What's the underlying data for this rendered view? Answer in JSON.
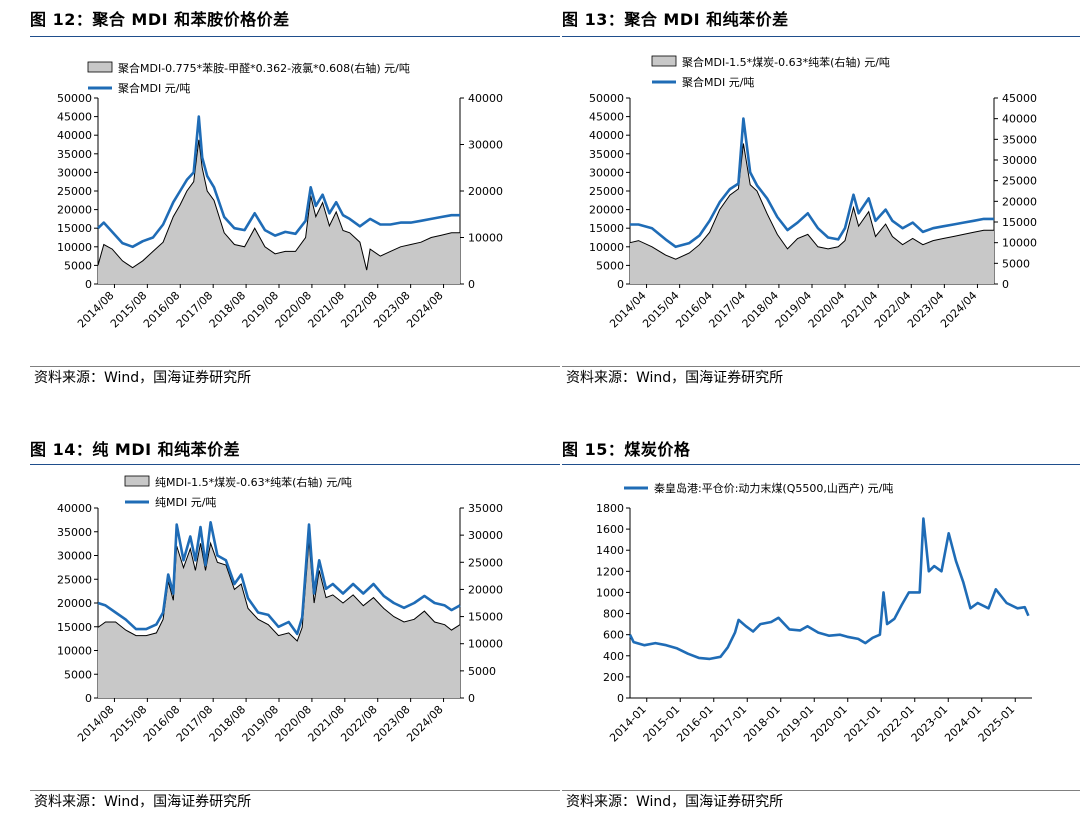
{
  "colors": {
    "line": "#1f6cb6",
    "area": "#c8c8c8",
    "spread": "#000000",
    "rule": "#1f4e8c"
  },
  "panels": [
    {
      "title": "图 12：聚合 MDI 和苯胺价格价差",
      "source": "资料来源：Wind，国海证券研究所"
    },
    {
      "title": "图 13：聚合 MDI 和纯苯价差",
      "source": "资料来源：Wind，国海证券研究所"
    },
    {
      "title": "图 14：纯 MDI 和纯苯价差",
      "source": "资料来源：Wind，国海证券研究所"
    },
    {
      "title": "图 15：煤炭价格",
      "source": "资料来源：Wind，国海证券研究所"
    }
  ],
  "chart_data": [
    {
      "type": "line",
      "title": "图 12：聚合 MDI 和苯胺价格价差",
      "legend": [
        "聚合MDI-0.775*苯胺-甲醛*0.362-液氯*0.608(右轴) 元/吨",
        "聚合MDI 元/吨"
      ],
      "x_ticks": [
        "2014/08",
        "2015/08",
        "2016/08",
        "2017/08",
        "2018/08",
        "2019/08",
        "2020/08",
        "2021/08",
        "2022/08",
        "2023/08",
        "2024/08"
      ],
      "x_range": [
        2014.58,
        2025.25
      ],
      "left_axis": {
        "min": 0,
        "max": 50000,
        "ticks": [
          0,
          5000,
          10000,
          15000,
          20000,
          25000,
          30000,
          35000,
          40000,
          45000,
          50000
        ]
      },
      "right_axis": {
        "min": 0,
        "max": 40000,
        "ticks": [
          0,
          10000,
          20000,
          30000,
          40000
        ]
      },
      "series": [
        {
          "name": "聚合MDI 元/吨",
          "axis": "left",
          "kind": "line",
          "x": [
            2014.58,
            2014.75,
            2015.0,
            2015.3,
            2015.6,
            2015.9,
            2016.2,
            2016.5,
            2016.8,
            2017.0,
            2017.2,
            2017.4,
            2017.55,
            2017.65,
            2017.8,
            2018.0,
            2018.3,
            2018.6,
            2018.9,
            2019.2,
            2019.5,
            2019.8,
            2020.1,
            2020.4,
            2020.7,
            2020.85,
            2021.0,
            2021.2,
            2021.4,
            2021.6,
            2021.8,
            2022.0,
            2022.3,
            2022.6,
            2022.9,
            2023.2,
            2023.5,
            2023.8,
            2024.1,
            2024.4,
            2024.7,
            2025.0,
            2025.25
          ],
          "y": [
            15000,
            16500,
            14000,
            11000,
            10000,
            11500,
            12500,
            16000,
            22000,
            25000,
            28000,
            30000,
            45000,
            34000,
            29000,
            26000,
            18000,
            15000,
            14500,
            19000,
            14500,
            13000,
            14000,
            13500,
            17000,
            26000,
            21000,
            24000,
            19000,
            22000,
            18500,
            17500,
            15500,
            17500,
            16000,
            16000,
            16500,
            16500,
            17000,
            17500,
            18000,
            18500,
            18500
          ]
        },
        {
          "name": "聚合MDI-0.775*苯胺-甲醛*0.362-液氯*0.608(右轴) 元/吨",
          "axis": "right",
          "kind": "area",
          "x": [
            2014.58,
            2014.75,
            2015.0,
            2015.3,
            2015.6,
            2015.9,
            2016.2,
            2016.5,
            2016.8,
            2017.0,
            2017.2,
            2017.4,
            2017.55,
            2017.65,
            2017.8,
            2018.0,
            2018.3,
            2018.6,
            2018.9,
            2019.2,
            2019.5,
            2019.8,
            2020.1,
            2020.4,
            2020.7,
            2020.85,
            2021.0,
            2021.2,
            2021.4,
            2021.6,
            2021.8,
            2022.0,
            2022.3,
            2022.5,
            2022.6,
            2022.9,
            2023.2,
            2023.5,
            2023.8,
            2024.1,
            2024.4,
            2024.7,
            2025.0,
            2025.25
          ],
          "y": [
            4000,
            8500,
            7500,
            5000,
            3500,
            5000,
            7000,
            9000,
            14500,
            17000,
            20000,
            22000,
            31000,
            25000,
            20000,
            18000,
            11000,
            8500,
            8000,
            12000,
            8000,
            6500,
            7000,
            7000,
            10000,
            19000,
            14500,
            17500,
            12500,
            15500,
            11500,
            11000,
            9000,
            3000,
            7500,
            6000,
            7000,
            8000,
            8500,
            9000,
            10000,
            10500,
            11000,
            11000
          ]
        }
      ]
    },
    {
      "type": "line",
      "title": "图 13：聚合 MDI 和纯苯价差",
      "legend": [
        "聚合MDI-1.5*煤炭-0.63*纯苯(右轴) 元/吨",
        "聚合MDI 元/吨"
      ],
      "x_ticks": [
        "2014/04",
        "2015/04",
        "2016/04",
        "2017/04",
        "2018/04",
        "2019/04",
        "2020/04",
        "2021/04",
        "2022/04",
        "2023/04",
        "2024/04"
      ],
      "x_range": [
        2014.25,
        2025.0
      ],
      "left_axis": {
        "min": 0,
        "max": 50000,
        "ticks": [
          0,
          5000,
          10000,
          15000,
          20000,
          25000,
          30000,
          35000,
          40000,
          45000,
          50000
        ]
      },
      "right_axis": {
        "min": 0,
        "max": 45000,
        "ticks": [
          0,
          5000,
          10000,
          15000,
          20000,
          25000,
          30000,
          35000,
          40000,
          45000
        ]
      },
      "series": [
        {
          "name": "聚合MDI 元/吨",
          "axis": "left",
          "kind": "line",
          "x": [
            2014.25,
            2014.5,
            2014.9,
            2015.3,
            2015.6,
            2016.0,
            2016.3,
            2016.6,
            2016.9,
            2017.2,
            2017.45,
            2017.6,
            2017.8,
            2018.0,
            2018.3,
            2018.6,
            2018.9,
            2019.2,
            2019.5,
            2019.8,
            2020.1,
            2020.4,
            2020.6,
            2020.85,
            2021.0,
            2021.3,
            2021.5,
            2021.8,
            2022.0,
            2022.3,
            2022.6,
            2022.9,
            2023.2,
            2023.5,
            2023.8,
            2024.1,
            2024.4,
            2024.7,
            2025.0
          ],
          "y": [
            16000,
            16000,
            15000,
            12000,
            10000,
            11000,
            13000,
            17000,
            22000,
            25500,
            27000,
            44500,
            30000,
            26500,
            23000,
            18000,
            14500,
            16500,
            19000,
            15000,
            12500,
            12000,
            15000,
            24000,
            19000,
            23000,
            17000,
            20000,
            17000,
            15000,
            16500,
            14000,
            15000,
            15500,
            16000,
            16500,
            17000,
            17500,
            17500
          ]
        },
        {
          "name": "聚合MDI-1.5*煤炭-0.63*纯苯(右轴) 元/吨",
          "axis": "right",
          "kind": "area",
          "x": [
            2014.25,
            2014.5,
            2014.9,
            2015.3,
            2015.6,
            2016.0,
            2016.3,
            2016.6,
            2016.9,
            2017.2,
            2017.45,
            2017.6,
            2017.8,
            2018.0,
            2018.3,
            2018.6,
            2018.9,
            2019.2,
            2019.5,
            2019.8,
            2020.1,
            2020.4,
            2020.6,
            2020.85,
            2021.0,
            2021.3,
            2021.5,
            2021.8,
            2022.0,
            2022.3,
            2022.6,
            2022.9,
            2023.2,
            2023.5,
            2023.8,
            2024.1,
            2024.4,
            2024.7,
            2025.0
          ],
          "y": [
            10000,
            10500,
            9000,
            7000,
            6000,
            7500,
            9500,
            12500,
            18000,
            21500,
            23000,
            34000,
            24000,
            22500,
            17000,
            12000,
            8500,
            11000,
            12000,
            9000,
            8500,
            9000,
            10500,
            18500,
            14000,
            17500,
            11500,
            14500,
            11500,
            9500,
            11000,
            9500,
            10500,
            11000,
            11500,
            12000,
            12500,
            13000,
            13000
          ]
        }
      ]
    },
    {
      "type": "line",
      "title": "图 14：纯 MDI 和纯苯价差",
      "legend": [
        "纯MDI-1.5*煤炭-0.63*纯苯(右轴) 元/吨",
        "纯MDI 元/吨"
      ],
      "x_ticks": [
        "2014/08",
        "2015/08",
        "2016/08",
        "2017/08",
        "2018/08",
        "2019/08",
        "2020/08",
        "2021/08",
        "2022/08",
        "2023/08",
        "2024/08"
      ],
      "x_range": [
        2014.58,
        2025.25
      ],
      "left_axis": {
        "min": 0,
        "max": 40000,
        "ticks": [
          0,
          5000,
          10000,
          15000,
          20000,
          25000,
          30000,
          35000,
          40000
        ]
      },
      "right_axis": {
        "min": 0,
        "max": 35000,
        "ticks": [
          0,
          5000,
          10000,
          15000,
          20000,
          25000,
          30000,
          35000
        ]
      },
      "series": [
        {
          "name": "纯MDI 元/吨",
          "axis": "left",
          "kind": "line",
          "x": [
            2014.58,
            2014.8,
            2015.1,
            2015.4,
            2015.7,
            2016.0,
            2016.3,
            2016.5,
            2016.65,
            2016.8,
            2016.9,
            2017.1,
            2017.3,
            2017.45,
            2017.6,
            2017.75,
            2017.9,
            2018.1,
            2018.35,
            2018.6,
            2018.8,
            2019.0,
            2019.3,
            2019.6,
            2019.9,
            2020.2,
            2020.45,
            2020.6,
            2020.8,
            2020.95,
            2021.1,
            2021.3,
            2021.5,
            2021.8,
            2022.1,
            2022.4,
            2022.7,
            2023.0,
            2023.3,
            2023.6,
            2023.9,
            2024.2,
            2024.5,
            2024.8,
            2025.0,
            2025.25
          ],
          "y": [
            20000,
            19500,
            18000,
            16500,
            14500,
            14500,
            15500,
            18000,
            26000,
            22000,
            36500,
            29000,
            34000,
            29000,
            36000,
            28000,
            37000,
            30000,
            29000,
            24000,
            26000,
            21000,
            18000,
            17500,
            15000,
            16000,
            13500,
            17000,
            36500,
            22000,
            29000,
            23000,
            24000,
            22000,
            24000,
            22000,
            24000,
            21500,
            20000,
            19000,
            20000,
            21500,
            20000,
            19500,
            18500,
            19500
          ]
        },
        {
          "name": "纯MDI-1.5*煤炭-0.63*纯苯(右轴) 元/吨",
          "axis": "right",
          "kind": "area",
          "x": [
            2014.58,
            2014.8,
            2015.1,
            2015.4,
            2015.7,
            2016.0,
            2016.3,
            2016.5,
            2016.65,
            2016.8,
            2016.9,
            2017.1,
            2017.3,
            2017.45,
            2017.6,
            2017.75,
            2017.9,
            2018.1,
            2018.35,
            2018.6,
            2018.8,
            2019.0,
            2019.3,
            2019.6,
            2019.9,
            2020.2,
            2020.45,
            2020.6,
            2020.8,
            2020.95,
            2021.1,
            2021.3,
            2021.5,
            2021.8,
            2022.1,
            2022.4,
            2022.7,
            2023.0,
            2023.3,
            2023.6,
            2023.9,
            2024.2,
            2024.5,
            2024.8,
            2025.0,
            2025.25
          ],
          "y": [
            13000,
            14000,
            14000,
            12500,
            11500,
            11500,
            12000,
            14500,
            21500,
            18000,
            28000,
            24000,
            27500,
            23500,
            28500,
            23500,
            28500,
            25000,
            24500,
            20000,
            21000,
            16500,
            14500,
            13500,
            11500,
            12000,
            10500,
            13000,
            29000,
            17500,
            23500,
            18500,
            19000,
            17500,
            19000,
            17000,
            18500,
            16500,
            15000,
            14000,
            14500,
            16000,
            14000,
            13500,
            12500,
            13500
          ]
        }
      ]
    },
    {
      "type": "line",
      "title": "图 15：煤炭价格",
      "legend": [
        "秦皇岛港:平仓价:动力末煤(Q5500,山西产) 元/吨"
      ],
      "x_ticks": [
        "2014-01",
        "2015-01",
        "2016-01",
        "2017-01",
        "2018-01",
        "2019-01",
        "2020-01",
        "2021-01",
        "2022-01",
        "2023-01",
        "2024-01",
        "2025-01"
      ],
      "x_range": [
        2014.0,
        2025.1
      ],
      "left_axis": {
        "min": 0,
        "max": 1800,
        "ticks": [
          0,
          200,
          400,
          600,
          800,
          1000,
          1200,
          1400,
          1600,
          1800
        ]
      },
      "series": [
        {
          "name": "秦皇岛港:平仓价:动力末煤(Q5500,山西产) 元/吨",
          "axis": "left",
          "kind": "line",
          "x": [
            2014.0,
            2014.1,
            2014.4,
            2014.7,
            2015.0,
            2015.3,
            2015.6,
            2015.9,
            2016.2,
            2016.5,
            2016.7,
            2016.9,
            2017.0,
            2017.2,
            2017.4,
            2017.6,
            2017.9,
            2018.1,
            2018.4,
            2018.7,
            2018.9,
            2019.2,
            2019.5,
            2019.8,
            2020.0,
            2020.3,
            2020.5,
            2020.7,
            2020.9,
            2021.0,
            2021.1,
            2021.3,
            2021.5,
            2021.7,
            2021.85,
            2022.0,
            2022.1,
            2022.25,
            2022.4,
            2022.6,
            2022.8,
            2023.0,
            2023.2,
            2023.4,
            2023.6,
            2023.9,
            2024.1,
            2024.4,
            2024.7,
            2024.9,
            2025.0
          ],
          "y": [
            600,
            530,
            500,
            520,
            500,
            470,
            420,
            380,
            370,
            390,
            480,
            620,
            740,
            680,
            630,
            700,
            720,
            760,
            650,
            640,
            680,
            620,
            590,
            600,
            580,
            560,
            520,
            570,
            600,
            1000,
            700,
            750,
            880,
            1000,
            1000,
            1000,
            1700,
            1200,
            1250,
            1200,
            1560,
            1300,
            1100,
            850,
            900,
            850,
            1030,
            900,
            850,
            860,
            780
          ]
        }
      ]
    }
  ]
}
